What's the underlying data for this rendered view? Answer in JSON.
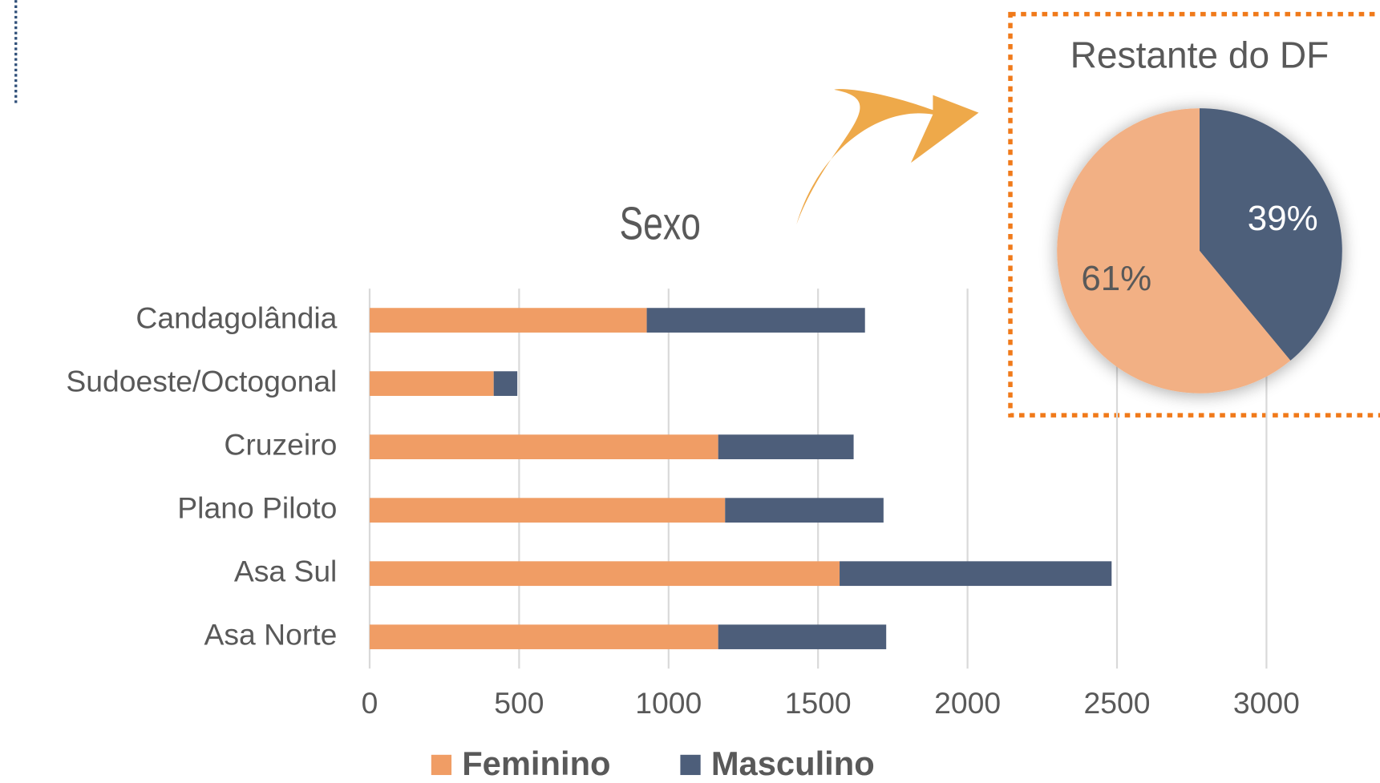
{
  "chart_data": [
    {
      "type": "bar",
      "orientation": "horizontal",
      "stacked": true,
      "title": "Sexo",
      "categories": [
        "Candagolândia",
        "Sudoeste/Octogonal",
        "Cruzeiro",
        "Plano Piloto",
        "Asa Sul",
        "Asa Norte"
      ],
      "series": [
        {
          "name": "Feminino",
          "color": "#f09d65",
          "values": [
            927,
            415,
            1166,
            1189,
            1572,
            1166
          ]
        },
        {
          "name": "Masculino",
          "color": "#4d5e7a",
          "values": [
            730,
            79,
            453,
            530,
            910,
            562
          ]
        }
      ],
      "xlim": [
        0,
        3000
      ],
      "xticks": [
        0,
        500,
        1000,
        1500,
        2000,
        2500,
        3000
      ],
      "grid": true,
      "legend": "bottom"
    },
    {
      "type": "pie",
      "title": "Restante do DF",
      "values": [
        39,
        61
      ],
      "value_labels": [
        "39%",
        "61%"
      ],
      "colors": [
        "#4d5e7a",
        "#f2b084"
      ]
    }
  ]
}
